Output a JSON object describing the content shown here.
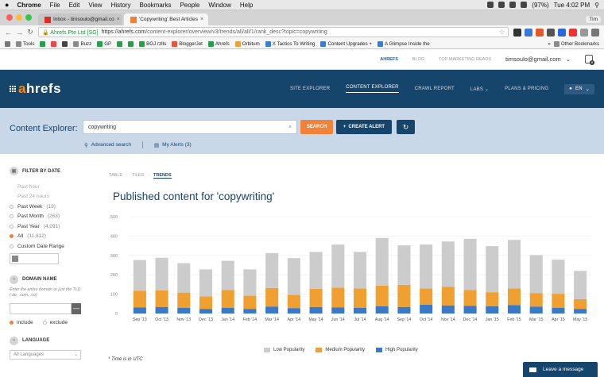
{
  "os_menu": {
    "app": "Chrome",
    "items": [
      "File",
      "Edit",
      "View",
      "History",
      "Bookmarks",
      "People",
      "Window",
      "Help"
    ],
    "clock": "Tue 4:02 PM",
    "battery": "(97%)"
  },
  "browser": {
    "tabs": [
      {
        "title": "Inbox - timsoulo@gmail.co",
        "active": false
      },
      {
        "title": "'Copywriting' Best Articles",
        "active": true
      }
    ],
    "profile": "Tim",
    "security_label": "Ahrefs Pte Ltd [SG]",
    "url_host": "https://ahrefs.com",
    "url_path": "/content-explorer/overview/v3/trends/all/all/1/rank_desc?topic=copywriting",
    "bookmarks": [
      "Tools",
      "Buzz",
      "GP",
      "BGJ rzlts",
      "BloggerJet",
      "Ahrefs",
      "Orbitum",
      "X Tactics To Writing",
      "Content Upgrades +",
      "A Glimpse Inside the"
    ],
    "other_bookmarks": "Other Bookmarks"
  },
  "top_links": {
    "ahrefs": "AHREFS",
    "blog": "BLOG",
    "reads": "TOP MARKETING READS",
    "email": "timsoulo@gmail.com",
    "notif_count": "0"
  },
  "nav": {
    "logo_a": "a",
    "logo_rest": "hrefs",
    "links": [
      "SITE EXPLORER",
      "CONTENT EXPLORER",
      "CRAWL REPORT",
      "LABS",
      "PLANS & PRICING"
    ],
    "active_index": 1,
    "lang": "EN"
  },
  "search": {
    "label": "Content Explorer:",
    "query": "copywriting",
    "search_btn": "SEARCH",
    "alert_btn": "CREATE ALERT",
    "advanced": "Advanced search",
    "alerts": "My Alerts (3)"
  },
  "filters": {
    "date_title": "FILTER BY DATE",
    "date_options": [
      {
        "label": "Past hour",
        "count": "",
        "disabled": true,
        "selected": false
      },
      {
        "label": "Past 24 hours",
        "count": "",
        "disabled": true,
        "selected": false
      },
      {
        "label": "Past Week",
        "count": "(19)",
        "disabled": false,
        "selected": false
      },
      {
        "label": "Past Month",
        "count": "(263)",
        "disabled": false,
        "selected": false
      },
      {
        "label": "Past Year",
        "count": "(4,091)",
        "disabled": false,
        "selected": false
      },
      {
        "label": "All",
        "count": "(11,812)",
        "disabled": false,
        "selected": true
      },
      {
        "label": "Custom Date Range",
        "count": "",
        "disabled": false,
        "selected": false
      }
    ],
    "domain_title": "DOMAIN NAME",
    "domain_hint": "Enter the entire domain or just the TLD (.de, .com, .co)",
    "include": "include",
    "exclude": "exclude",
    "lang_title": "LANGUAGE",
    "lang_value": "All Languages"
  },
  "views": {
    "table": "TABLE",
    "tiles": "TILES",
    "trends": "TRENDS"
  },
  "chart_title": "Published content for 'copywriting'",
  "timezone_note": "* Time is in UTC",
  "chat_label": "Leave a message",
  "colors": {
    "low": "#cccccc",
    "medium": "#f0a030",
    "high": "#3a78c8",
    "brand": "#16456c",
    "accent": "#f0823a"
  },
  "chart_data": {
    "type": "bar",
    "stacked": true,
    "categories": [
      "Sep '13",
      "Oct '13",
      "Nov '13",
      "Dec '13",
      "Jan '14",
      "Feb '14",
      "Mar '14",
      "Apr '14",
      "May '14",
      "Jun '14",
      "Jul '14",
      "Aug '14",
      "Sep '14",
      "Oct '14",
      "Nov '14",
      "Dec '14",
      "Jan '15",
      "Feb '15",
      "Mar '15",
      "Apr '15",
      "May '15"
    ],
    "series": [
      {
        "name": "High Popularity",
        "values": [
          32,
          34,
          30,
          24,
          30,
          24,
          36,
          28,
          34,
          32,
          30,
          38,
          34,
          46,
          42,
          40,
          38,
          44,
          36,
          30,
          24
        ]
      },
      {
        "name": "Medium Popularity",
        "values": [
          86,
          86,
          78,
          64,
          92,
          68,
          96,
          68,
          94,
          102,
          100,
          106,
          114,
          84,
          96,
          82,
          72,
          86,
          70,
          72,
          50
        ]
      },
      {
        "name": "Low Popularity",
        "values": [
          158,
          168,
          152,
          140,
          150,
          136,
          180,
          190,
          190,
          222,
          188,
          246,
          204,
          226,
          234,
          264,
          238,
          250,
          196,
          176,
          146
        ]
      }
    ],
    "yticks": [
      0,
      100,
      200,
      300,
      400,
      500
    ],
    "ylim": [
      0,
      500
    ]
  }
}
